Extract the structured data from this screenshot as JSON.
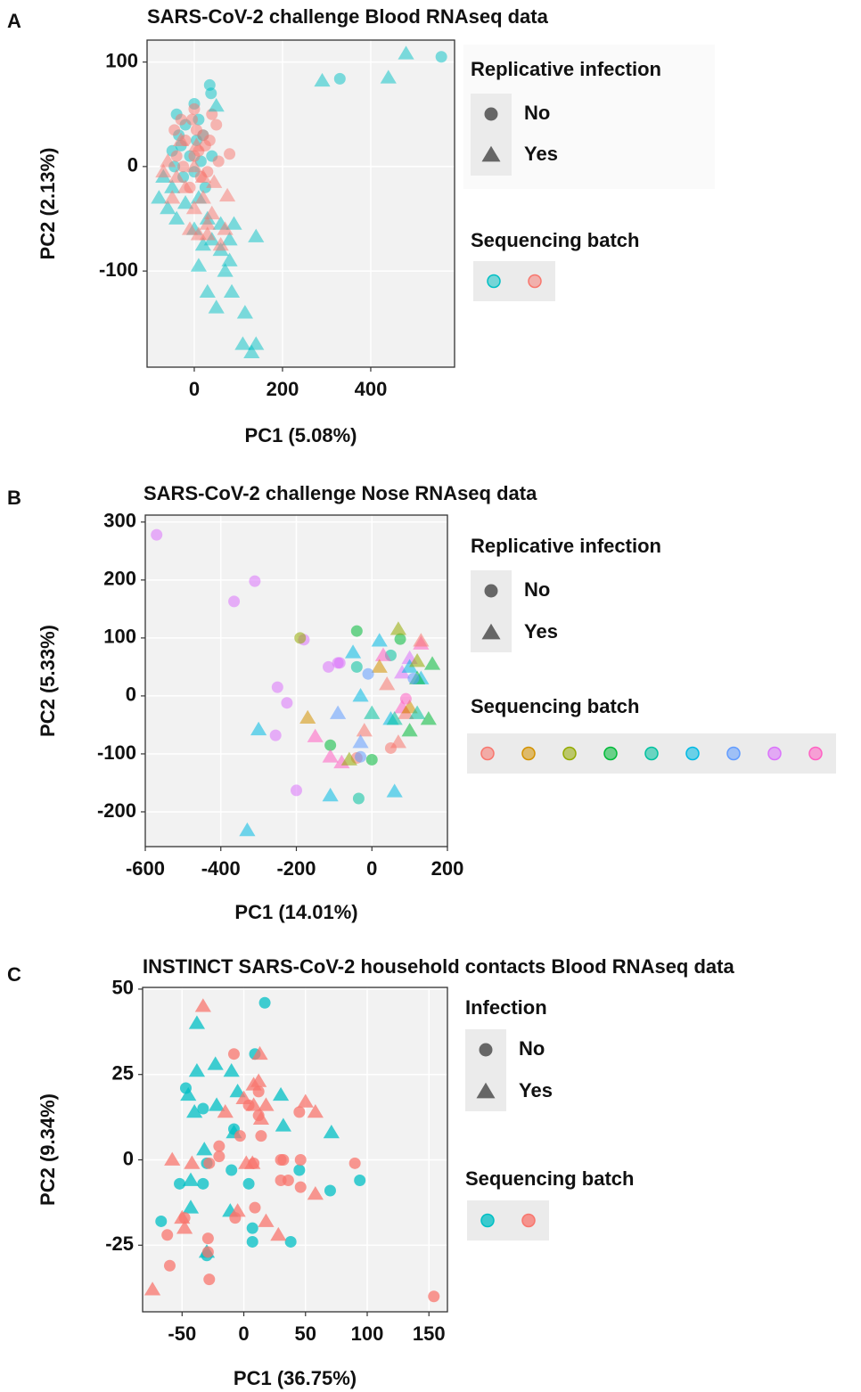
{
  "chart_data": [
    {
      "type": "scatter",
      "panel_label": "A",
      "title": "SARS-CoV-2 challenge Blood RNAseq data",
      "xlabel": "PC1 (5.08%)",
      "ylabel": "PC2 (2.13%)",
      "xlim": [
        -107,
        590
      ],
      "ylim": [
        -192,
        121
      ],
      "xticks": [
        0,
        200,
        400
      ],
      "yticks": [
        -100,
        0,
        100
      ],
      "grid": true,
      "alpha": 0.5,
      "shape_legend": {
        "title": "Replicative infection",
        "labels": [
          "No",
          "Yes"
        ],
        "shapes": [
          "circle",
          "triangle"
        ]
      },
      "color_legend": {
        "title": "Sequencing batch",
        "colors": [
          "#00BFC4",
          "#F8766D"
        ]
      },
      "series": [
        {
          "color": "#00BFC4",
          "shape": "circle",
          "x": [
            -40,
            -20,
            0,
            35,
            38,
            330,
            560,
            -30,
            -10,
            5,
            20,
            -45,
            -25,
            0,
            15,
            -35,
            10,
            -50,
            25,
            40
          ],
          "values": [
            50,
            40,
            60,
            78,
            70,
            84,
            105,
            20,
            10,
            25,
            30,
            0,
            -10,
            -5,
            5,
            30,
            45,
            15,
            -20,
            10
          ]
        },
        {
          "color": "#F8766D",
          "shape": "circle",
          "x": [
            -30,
            0,
            20,
            50,
            40,
            -20,
            10,
            -40,
            30,
            80,
            -10,
            5,
            -45,
            25,
            55,
            15,
            -25,
            0,
            35,
            -5
          ],
          "values": [
            45,
            55,
            30,
            40,
            50,
            25,
            15,
            10,
            -5,
            12,
            -20,
            35,
            35,
            20,
            5,
            -10,
            0,
            10,
            25,
            45
          ]
        },
        {
          "color": "#00BFC4",
          "shape": "triangle",
          "x": [
            480,
            440,
            290,
            50,
            -80,
            -60,
            -40,
            0,
            30,
            60,
            80,
            140,
            90,
            40,
            60,
            80,
            10,
            30,
            50,
            85,
            115,
            110,
            140,
            130,
            -70,
            -50,
            -20,
            10,
            20,
            70
          ],
          "values": [
            108,
            85,
            82,
            58,
            -30,
            -40,
            -50,
            -60,
            -50,
            -55,
            -70,
            -67,
            -55,
            -70,
            -80,
            -90,
            -95,
            -120,
            -135,
            -120,
            -140,
            -170,
            -170,
            -178,
            -10,
            -20,
            -35,
            -30,
            -75,
            -100
          ]
        },
        {
          "color": "#F8766D",
          "shape": "triangle",
          "x": [
            -60,
            -40,
            -20,
            0,
            20,
            40,
            75,
            -10,
            10,
            30,
            70,
            60,
            -50,
            -30,
            0,
            20,
            45,
            -70,
            5,
            30
          ],
          "values": [
            5,
            -10,
            -20,
            -40,
            -30,
            -45,
            -28,
            -60,
            -65,
            -65,
            -60,
            -75,
            -30,
            25,
            0,
            -10,
            -15,
            -5,
            20,
            -55
          ]
        }
      ]
    },
    {
      "type": "scatter",
      "panel_label": "B",
      "title": "SARS-CoV-2 challenge Nose RNAseq data",
      "xlabel": "PC1 (14.01%)",
      "ylabel": "PC2 (5.33%)",
      "xlim": [
        -600,
        200
      ],
      "ylim": [
        -260,
        312
      ],
      "xticks": [
        -600,
        -400,
        -200,
        0,
        200
      ],
      "yticks": [
        -200,
        -100,
        0,
        100,
        200,
        300
      ],
      "grid": true,
      "alpha": 0.55,
      "shape_legend": {
        "title": "Replicative infection",
        "labels": [
          "No",
          "Yes"
        ],
        "shapes": [
          "circle",
          "triangle"
        ]
      },
      "color_legend": {
        "title": "Sequencing batch",
        "colors": [
          "#F8766D",
          "#D39200",
          "#93AA00",
          "#00BA38",
          "#00C19F",
          "#00B9E3",
          "#619CFF",
          "#DB72FB",
          "#FF61C3"
        ]
      },
      "series": [
        {
          "color": "#DB72FB",
          "shape": "circle",
          "x": [
            -570,
            -310,
            -365,
            -180,
            -115,
            -90,
            -85,
            -250,
            -225,
            -255,
            -200
          ],
          "values": [
            278,
            198,
            163,
            97,
            50,
            57,
            57,
            15,
            -12,
            -68,
            -163
          ]
        },
        {
          "color": "#DB72FB",
          "shape": "triangle",
          "x": [
            100,
            80
          ],
          "values": [
            65,
            40
          ]
        },
        {
          "color": "#93AA00",
          "shape": "circle",
          "x": [
            -190
          ],
          "values": [
            100
          ]
        },
        {
          "color": "#00C19F",
          "shape": "circle",
          "x": [
            -35,
            -40,
            50
          ],
          "values": [
            -177,
            50,
            70
          ]
        },
        {
          "color": "#00BA38",
          "shape": "circle",
          "x": [
            -40,
            75,
            -110,
            0
          ],
          "values": [
            112,
            98,
            -85,
            -110
          ]
        },
        {
          "color": "#00B9E3",
          "shape": "triangle",
          "x": [
            -330,
            -300,
            -110,
            -50,
            60,
            20,
            100,
            130,
            -30,
            50
          ],
          "values": [
            -232,
            -58,
            -172,
            75,
            -165,
            95,
            50,
            30,
            0,
            -40
          ]
        },
        {
          "color": "#FF61C3",
          "shape": "triangle",
          "x": [
            -150,
            -110,
            -80,
            30,
            80,
            130
          ],
          "values": [
            -70,
            -105,
            -115,
            70,
            -20,
            90
          ]
        },
        {
          "color": "#F8766D",
          "shape": "triangle",
          "x": [
            130,
            90,
            70,
            40,
            -20
          ],
          "values": [
            95,
            -30,
            -80,
            20,
            -60
          ]
        },
        {
          "color": "#F8766D",
          "shape": "circle",
          "x": [
            -40,
            50
          ],
          "values": [
            -107,
            -90
          ]
        },
        {
          "color": "#D39200",
          "shape": "triangle",
          "x": [
            -170,
            20,
            100
          ],
          "values": [
            -38,
            50,
            -20
          ]
        },
        {
          "color": "#93AA00",
          "shape": "triangle",
          "x": [
            70,
            120,
            -60
          ],
          "values": [
            115,
            60,
            -110
          ]
        },
        {
          "color": "#00BA38",
          "shape": "triangle",
          "x": [
            160,
            150,
            120,
            100
          ],
          "values": [
            55,
            -40,
            30,
            -60
          ]
        },
        {
          "color": "#619CFF",
          "shape": "circle",
          "x": [
            -10,
            110,
            -30
          ],
          "values": [
            38,
            30,
            -105
          ]
        },
        {
          "color": "#619CFF",
          "shape": "triangle",
          "x": [
            -90,
            -30
          ],
          "values": [
            -30,
            -80
          ]
        },
        {
          "color": "#00C19F",
          "shape": "triangle",
          "x": [
            60,
            0,
            120
          ],
          "values": [
            -40,
            -30,
            -30
          ]
        },
        {
          "color": "#FF61C3",
          "shape": "circle",
          "x": [
            90
          ],
          "values": [
            -5
          ]
        }
      ]
    },
    {
      "type": "scatter",
      "panel_label": "C",
      "title": "INSTINCT SARS-CoV-2 household contacts Blood RNAseq data",
      "xlabel": "PC1 (36.75%)",
      "ylabel": "PC2 (9.34%)",
      "xlim": [
        -82,
        165
      ],
      "ylim": [
        -44.5,
        50.5
      ],
      "xticks": [
        -50,
        0,
        50,
        100,
        150
      ],
      "yticks": [
        -25,
        0,
        25,
        50
      ],
      "grid": true,
      "alpha": 0.75,
      "shape_legend": {
        "title": "Infection",
        "labels": [
          "No",
          "Yes"
        ],
        "shapes": [
          "circle",
          "triangle"
        ]
      },
      "color_legend": {
        "title": "Sequencing batch",
        "colors": [
          "#00BFC4",
          "#F8766D"
        ]
      },
      "series": [
        {
          "color": "#00BFC4",
          "shape": "circle",
          "x": [
            17,
            9,
            -47,
            -33,
            -8,
            -30,
            -10,
            4,
            -52,
            -33,
            45,
            70,
            94,
            -67,
            7,
            7,
            38,
            -30
          ],
          "values": [
            46,
            31,
            21,
            15,
            9,
            -1,
            -3,
            -7,
            -7,
            -7,
            -3,
            -9,
            -6,
            -18,
            -20,
            -24,
            -24,
            -28
          ]
        },
        {
          "color": "#00BFC4",
          "shape": "triangle",
          "x": [
            -38,
            -38,
            -23,
            -10,
            -5,
            -45,
            -40,
            -22,
            30,
            32,
            71,
            -32,
            -8,
            -43,
            -43,
            -30,
            -11
          ],
          "values": [
            40,
            26,
            28,
            26,
            20,
            19,
            14,
            16,
            19,
            10,
            8,
            3,
            8,
            -6,
            -14,
            -27,
            -15
          ]
        },
        {
          "color": "#F8766D",
          "shape": "circle",
          "x": [
            -8,
            -20,
            -20,
            -3,
            4,
            12,
            12,
            14,
            8,
            30,
            32,
            45,
            46,
            36,
            46,
            -7,
            9,
            30,
            90,
            154,
            -62,
            -60,
            -28,
            -29,
            -29,
            -48,
            -28
          ],
          "values": [
            31,
            4,
            1,
            7,
            16,
            20,
            13,
            7,
            -1,
            0,
            0,
            14,
            0,
            -6,
            -8,
            -17,
            -14,
            -6,
            -1,
            -40,
            -22,
            -31,
            -35,
            -27,
            -23,
            -17,
            -1
          ]
        },
        {
          "color": "#F8766D",
          "shape": "triangle",
          "x": [
            -33,
            13,
            8,
            12,
            0,
            -15,
            18,
            8,
            14,
            50,
            58,
            -42,
            -58,
            -48,
            -50,
            2,
            -5,
            18,
            28,
            58,
            -74,
            7
          ],
          "values": [
            45,
            31,
            22,
            23,
            18,
            14,
            16,
            16,
            12,
            17,
            14,
            -1,
            0,
            -20,
            -17,
            -1,
            -15,
            -18,
            -22,
            -10,
            -38,
            -1
          ]
        }
      ]
    }
  ]
}
